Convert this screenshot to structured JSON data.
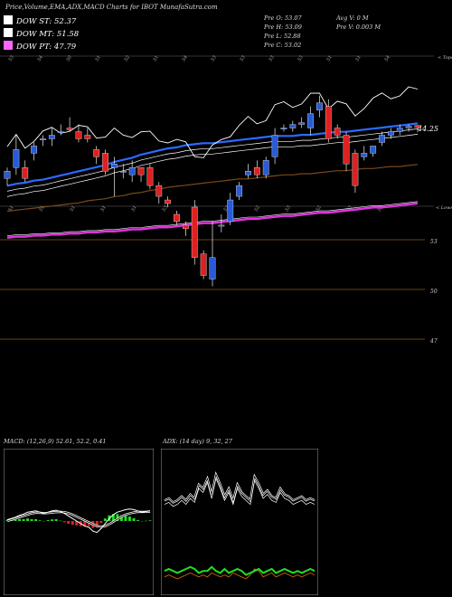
{
  "title": "Price,Volume,EMA,ADX,MACD Charts for IBOT MunafaSutra.com",
  "legend": [
    {
      "label": "DOW ST: 52.37",
      "color": "#ffffff"
    },
    {
      "label": "DOW MT: 51.58",
      "color": "#ffffff"
    },
    {
      "label": "DOW PT: 47.79",
      "color": "#ff66ff"
    }
  ],
  "ohlc": {
    "open": "Pre   O: 53.07",
    "high": "Pre   H: 53.09",
    "low": "Pre   L: 52.88",
    "close": "Pre   C: 53.02",
    "avg_vol": "Avg V: 0   M",
    "pre_vol": "Pre   V: 0.003 M"
  },
  "upper_right_label": "< Tops",
  "lower_right_label": "< Lows",
  "ema_value_label": "44.25",
  "price_levels": [
    {
      "label": "53",
      "value": 53
    },
    {
      "label": "50",
      "value": 50
    },
    {
      "label": "47",
      "value": 47
    }
  ],
  "top_counts": [
    "53",
    "54",
    "50",
    "51",
    "52",
    "51",
    "54",
    "53",
    "53",
    "53",
    "53",
    "51",
    "51",
    "54"
  ],
  "mid_counts": [
    "51",
    "51",
    "51",
    "51",
    "51",
    "53",
    "53",
    "52",
    "52",
    "53",
    "52",
    "53",
    "53"
  ],
  "macd_label": "MACD: (12,26,9) 52.61, 52.2, 0.41",
  "adx_label": "ADX: (14 day) 9, 32, 27",
  "colors": {
    "up": "#2a5bd7",
    "down": "#e02020",
    "ema_fast": "#2a6bff",
    "ema_pt": "#dd33dd",
    "ema_mt": "#7a4a1a",
    "macd_hist": "#22dd22",
    "adx_green": "#22dd22",
    "adx_orange": "#cc6600"
  },
  "chart_data": {
    "type": "candlestick",
    "ylim": [
      46.5,
      55
    ],
    "candles": [
      {
        "o": 51.6,
        "h": 51.9,
        "l": 51.4,
        "c": 51.8
      },
      {
        "o": 51.9,
        "h": 52.8,
        "l": 51.7,
        "c": 52.4
      },
      {
        "o": 51.9,
        "h": 52.1,
        "l": 51.5,
        "c": 51.6
      },
      {
        "o": 52.3,
        "h": 52.6,
        "l": 52.1,
        "c": 52.5
      },
      {
        "o": 52.7,
        "h": 52.8,
        "l": 52.5,
        "c": 52.7
      },
      {
        "o": 52.7,
        "h": 53.0,
        "l": 52.5,
        "c": 52.8
      },
      {
        "o": 52.9,
        "h": 53.1,
        "l": 52.8,
        "c": 52.9
      },
      {
        "o": 53.0,
        "h": 53.3,
        "l": 52.9,
        "c": 52.95
      },
      {
        "o": 52.9,
        "h": 53.1,
        "l": 52.6,
        "c": 52.7
      },
      {
        "o": 52.8,
        "h": 53.0,
        "l": 52.6,
        "c": 52.7
      },
      {
        "o": 52.4,
        "h": 52.5,
        "l": 52.0,
        "c": 52.2
      },
      {
        "o": 52.3,
        "h": 52.4,
        "l": 51.7,
        "c": 51.8
      },
      {
        "o": 51.9,
        "h": 52.2,
        "l": 51.1,
        "c": 52.0
      },
      {
        "o": 51.8,
        "h": 52.0,
        "l": 51.6,
        "c": 51.8
      },
      {
        "o": 51.7,
        "h": 52.1,
        "l": 51.5,
        "c": 51.9
      },
      {
        "o": 51.9,
        "h": 51.9,
        "l": 51.5,
        "c": 51.7
      },
      {
        "o": 51.9,
        "h": 52.0,
        "l": 51.3,
        "c": 51.4
      },
      {
        "o": 51.4,
        "h": 51.5,
        "l": 50.9,
        "c": 51.1
      },
      {
        "o": 51.0,
        "h": 51.1,
        "l": 50.8,
        "c": 50.9
      },
      {
        "o": 50.6,
        "h": 50.7,
        "l": 50.3,
        "c": 50.4
      },
      {
        "o": 50.3,
        "h": 50.4,
        "l": 50.0,
        "c": 50.2
      },
      {
        "o": 50.8,
        "h": 51.0,
        "l": 49.2,
        "c": 49.4
      },
      {
        "o": 49.5,
        "h": 49.6,
        "l": 48.8,
        "c": 48.9
      },
      {
        "o": 48.8,
        "h": 50.4,
        "l": 48.6,
        "c": 49.4
      },
      {
        "o": 50.3,
        "h": 50.6,
        "l": 50.1,
        "c": 50.3
      },
      {
        "o": 50.4,
        "h": 51.2,
        "l": 50.3,
        "c": 51.0
      },
      {
        "o": 51.1,
        "h": 51.5,
        "l": 51.0,
        "c": 51.4
      },
      {
        "o": 51.7,
        "h": 52.0,
        "l": 51.6,
        "c": 51.8
      },
      {
        "o": 51.9,
        "h": 52.1,
        "l": 51.6,
        "c": 51.7
      },
      {
        "o": 51.7,
        "h": 52.2,
        "l": 51.6,
        "c": 52.1
      },
      {
        "o": 52.2,
        "h": 53.0,
        "l": 52.0,
        "c": 52.8
      },
      {
        "o": 53.0,
        "h": 53.1,
        "l": 52.9,
        "c": 53.0
      },
      {
        "o": 53.0,
        "h": 53.2,
        "l": 52.9,
        "c": 53.1
      },
      {
        "o": 53.1,
        "h": 53.3,
        "l": 53.0,
        "c": 53.15
      },
      {
        "o": 53.0,
        "h": 53.6,
        "l": 52.8,
        "c": 53.4
      },
      {
        "o": 53.5,
        "h": 53.9,
        "l": 53.3,
        "c": 53.7
      },
      {
        "o": 53.6,
        "h": 53.8,
        "l": 52.6,
        "c": 52.7
      },
      {
        "o": 53.0,
        "h": 53.1,
        "l": 52.7,
        "c": 52.8
      },
      {
        "o": 52.8,
        "h": 52.9,
        "l": 51.8,
        "c": 52.0
      },
      {
        "o": 52.3,
        "h": 52.4,
        "l": 51.2,
        "c": 51.4
      },
      {
        "o": 52.2,
        "h": 52.5,
        "l": 52.1,
        "c": 52.3
      },
      {
        "o": 52.3,
        "h": 52.5,
        "l": 52.2,
        "c": 52.5
      },
      {
        "o": 52.6,
        "h": 52.9,
        "l": 52.5,
        "c": 52.8
      },
      {
        "o": 52.8,
        "h": 53.0,
        "l": 52.7,
        "c": 52.9
      },
      {
        "o": 52.9,
        "h": 53.1,
        "l": 52.8,
        "c": 53.0
      },
      {
        "o": 53.0,
        "h": 53.1,
        "l": 52.9,
        "c": 53.05
      },
      {
        "o": 53.07,
        "h": 53.09,
        "l": 52.88,
        "c": 53.02
      }
    ],
    "ema_fast": [
      46.7,
      46.9,
      47.0,
      47.2,
      47.3,
      47.5,
      47.7,
      47.9,
      48.1,
      48.3,
      48.5,
      48.7,
      49.0,
      49.2,
      49.4,
      49.7,
      49.9,
      50.1,
      50.3,
      50.4,
      50.6,
      50.7,
      50.8,
      50.8,
      50.9,
      51.0,
      51.1,
      51.2,
      51.3,
      51.4,
      51.5,
      51.5,
      51.5,
      51.6,
      51.6,
      51.7,
      51.8,
      51.9,
      51.9,
      52.0,
      52.1,
      52.2,
      52.3,
      52.4,
      52.5,
      52.6,
      52.7
    ],
    "ema_mt": [
      46.0,
      46.1,
      46.2,
      46.3,
      46.4,
      46.5,
      46.6,
      46.7,
      46.8,
      47.0,
      47.1,
      47.2,
      47.4,
      47.5,
      47.7,
      47.8,
      48.0,
      48.1,
      48.3,
      48.4,
      48.5,
      48.6,
      48.7,
      48.8,
      48.9,
      49.0,
      49.1,
      49.1,
      49.2,
      49.3,
      49.4,
      49.5,
      49.5,
      49.6,
      49.6,
      49.7,
      49.8,
      49.9,
      49.9,
      50.0,
      50.1,
      50.1,
      50.2,
      50.3,
      50.3,
      50.4,
      50.5
    ],
    "ema_pt": [
      45.2,
      45.3,
      45.3,
      45.4,
      45.4,
      45.5,
      45.5,
      45.6,
      45.6,
      45.7,
      45.7,
      45.8,
      45.8,
      45.9,
      46.0,
      46.0,
      46.1,
      46.2,
      46.2,
      46.3,
      46.4,
      46.5,
      46.6,
      46.6,
      46.7,
      46.8,
      46.9,
      47.0,
      47.0,
      47.1,
      47.2,
      47.3,
      47.3,
      47.4,
      47.5,
      47.6,
      47.6,
      47.7,
      47.8,
      47.9,
      48.0,
      48.1,
      48.1,
      48.2,
      48.3,
      48.4,
      48.5
    ]
  },
  "macd_data": {
    "macd": [
      0.1,
      0.2,
      0.3,
      0.45,
      0.55,
      0.7,
      0.75,
      0.8,
      0.7,
      0.6,
      0.7,
      0.8,
      0.85,
      0.75,
      0.6,
      0.4,
      0.2,
      0.0,
      -0.2,
      -0.4,
      -0.5,
      -0.8,
      -0.9,
      -0.6,
      -0.2,
      0.2,
      0.5,
      0.7,
      0.8,
      0.9,
      0.95,
      0.9,
      0.8,
      0.7,
      0.75,
      0.8
    ],
    "signal": [
      0.0,
      0.1,
      0.2,
      0.3,
      0.4,
      0.5,
      0.6,
      0.65,
      0.65,
      0.62,
      0.63,
      0.67,
      0.7,
      0.72,
      0.7,
      0.62,
      0.5,
      0.35,
      0.2,
      0.05,
      -0.1,
      -0.25,
      -0.4,
      -0.45,
      -0.4,
      -0.25,
      -0.05,
      0.15,
      0.35,
      0.5,
      0.6,
      0.68,
      0.72,
      0.72,
      0.73,
      0.75
    ],
    "hist": [
      0.1,
      0.1,
      0.1,
      0.15,
      0.15,
      0.2,
      0.15,
      0.15,
      0.05,
      -0.02,
      0.07,
      0.13,
      0.15,
      0.03,
      -0.1,
      -0.22,
      -0.3,
      -0.35,
      -0.4,
      -0.45,
      -0.4,
      -0.55,
      -0.5,
      -0.15,
      0.2,
      0.45,
      0.55,
      0.55,
      0.45,
      0.4,
      0.35,
      0.22,
      0.08,
      -0.02,
      0.02,
      0.05
    ]
  },
  "adx_data": {
    "plus_di": [
      22,
      23,
      21,
      22,
      24,
      22,
      25,
      23,
      30,
      28,
      33,
      25,
      35,
      30,
      24,
      28,
      22,
      30,
      26,
      24,
      22,
      34,
      30,
      25,
      27,
      24,
      23,
      28,
      25,
      24,
      22,
      23,
      24,
      22,
      23,
      22
    ],
    "minus_di": [
      24,
      25,
      23,
      24,
      26,
      24,
      27,
      25,
      32,
      30,
      35,
      27,
      37,
      32,
      26,
      30,
      24,
      32,
      28,
      26,
      24,
      36,
      32,
      27,
      29,
      26,
      25,
      30,
      27,
      26,
      24,
      25,
      26,
      24,
      25,
      24
    ],
    "adx": [
      9,
      10,
      9,
      8,
      9,
      10,
      11,
      10,
      8,
      9,
      9,
      11,
      9,
      8,
      10,
      8,
      9,
      10,
      9,
      7,
      8,
      9,
      10,
      8,
      9,
      10,
      8,
      9,
      10,
      9,
      8,
      9,
      8,
      9,
      10,
      9
    ],
    "adx_orange": [
      6,
      7,
      6,
      5,
      6,
      7,
      8,
      7,
      6,
      7,
      6,
      8,
      7,
      6,
      7,
      6,
      8,
      7,
      6,
      5,
      7,
      10,
      9,
      6,
      7,
      8,
      6,
      7,
      8,
      7,
      6,
      7,
      6,
      7,
      8,
      7
    ]
  }
}
